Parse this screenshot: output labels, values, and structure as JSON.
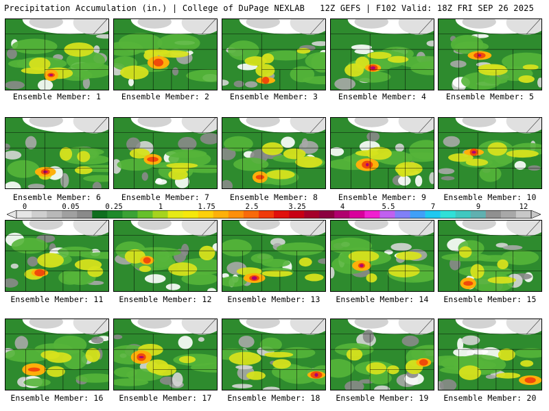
{
  "header": {
    "left": "Precipitation Accumulation (in.) | College of DuPage NEXLAB",
    "right": "12Z GEFS | F102 Valid: 18Z FRI SEP 26 2025"
  },
  "legend": {
    "ticks": [
      "0",
      "0.05",
      "0.25",
      "1",
      "1.75",
      "2.5",
      "3.25",
      "4",
      "5.5",
      "7",
      "9",
      "12"
    ],
    "colors": [
      "#e6e6e6",
      "#cfcfcf",
      "#b8b8b8",
      "#a0a0a0",
      "#8a8a8a",
      "#0f6e1e",
      "#1f8a2a",
      "#3aa235",
      "#66c02a",
      "#a6d31e",
      "#e6ea16",
      "#f5e80c",
      "#fdd00a",
      "#fdb00a",
      "#fd8f0a",
      "#f86a0a",
      "#f03a0a",
      "#e0100c",
      "#c80014",
      "#a5002a",
      "#8c0040",
      "#b0006e",
      "#d8009c",
      "#f020d0",
      "#c060f0",
      "#8080f8",
      "#40a0f8",
      "#20c8f0",
      "#30e0d8",
      "#40c8c0",
      "#60b0b0",
      "#909090",
      "#a8a8a8",
      "#c8c8c8"
    ]
  },
  "panels": [
    {
      "label": "Ensemble Member: 1"
    },
    {
      "label": "Ensemble Member: 2"
    },
    {
      "label": "Ensemble Member: 3"
    },
    {
      "label": "Ensemble Member: 4"
    },
    {
      "label": "Ensemble Member: 5"
    },
    {
      "label": "Ensemble Member: 6"
    },
    {
      "label": "Ensemble Member: 7"
    },
    {
      "label": "Ensemble Member: 8"
    },
    {
      "label": "Ensemble Member: 9"
    },
    {
      "label": "Ensemble Member: 10"
    },
    {
      "label": "Ensemble Member: 11"
    },
    {
      "label": "Ensemble Member: 12"
    },
    {
      "label": "Ensemble Member: 13"
    },
    {
      "label": "Ensemble Member: 14"
    },
    {
      "label": "Ensemble Member: 15"
    },
    {
      "label": "Ensemble Member: 16"
    },
    {
      "label": "Ensemble Member: 17"
    },
    {
      "label": "Ensemble Member: 18"
    },
    {
      "label": "Ensemble Member: 19"
    },
    {
      "label": "Ensemble Member: 20"
    }
  ]
}
